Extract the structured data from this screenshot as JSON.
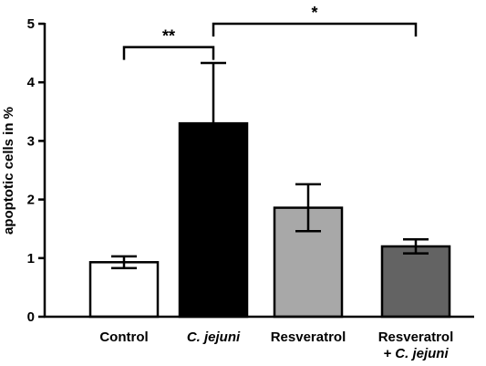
{
  "chart_data": {
    "type": "bar",
    "ylabel": "apoptotic cells in %",
    "xlabel": "",
    "title": "",
    "ylim": [
      0,
      5
    ],
    "yticks": [
      0,
      1,
      2,
      3,
      4,
      5
    ],
    "grid": false,
    "categories": [
      {
        "line1": "Control",
        "line2": "",
        "italic": false
      },
      {
        "line1": "C. jejuni",
        "line2": "",
        "italic": true
      },
      {
        "line1": "Resveratrol",
        "line2": "",
        "italic": false
      },
      {
        "line1": "Resveratrol",
        "line2": "+ C. jejuni",
        "italic": false,
        "line2_italic": true
      }
    ],
    "values": [
      0.93,
      3.3,
      1.86,
      1.2
    ],
    "errors": [
      0.1,
      1.03,
      0.4,
      0.12
    ],
    "bar_colors": [
      "#ffffff",
      "#000000",
      "#a8a8a8",
      "#636363"
    ],
    "significance": [
      {
        "from": 0,
        "to": 1,
        "label": "**",
        "y": 4.6
      },
      {
        "from": 1,
        "to": 3,
        "label": "*",
        "y": 5.0
      }
    ]
  }
}
